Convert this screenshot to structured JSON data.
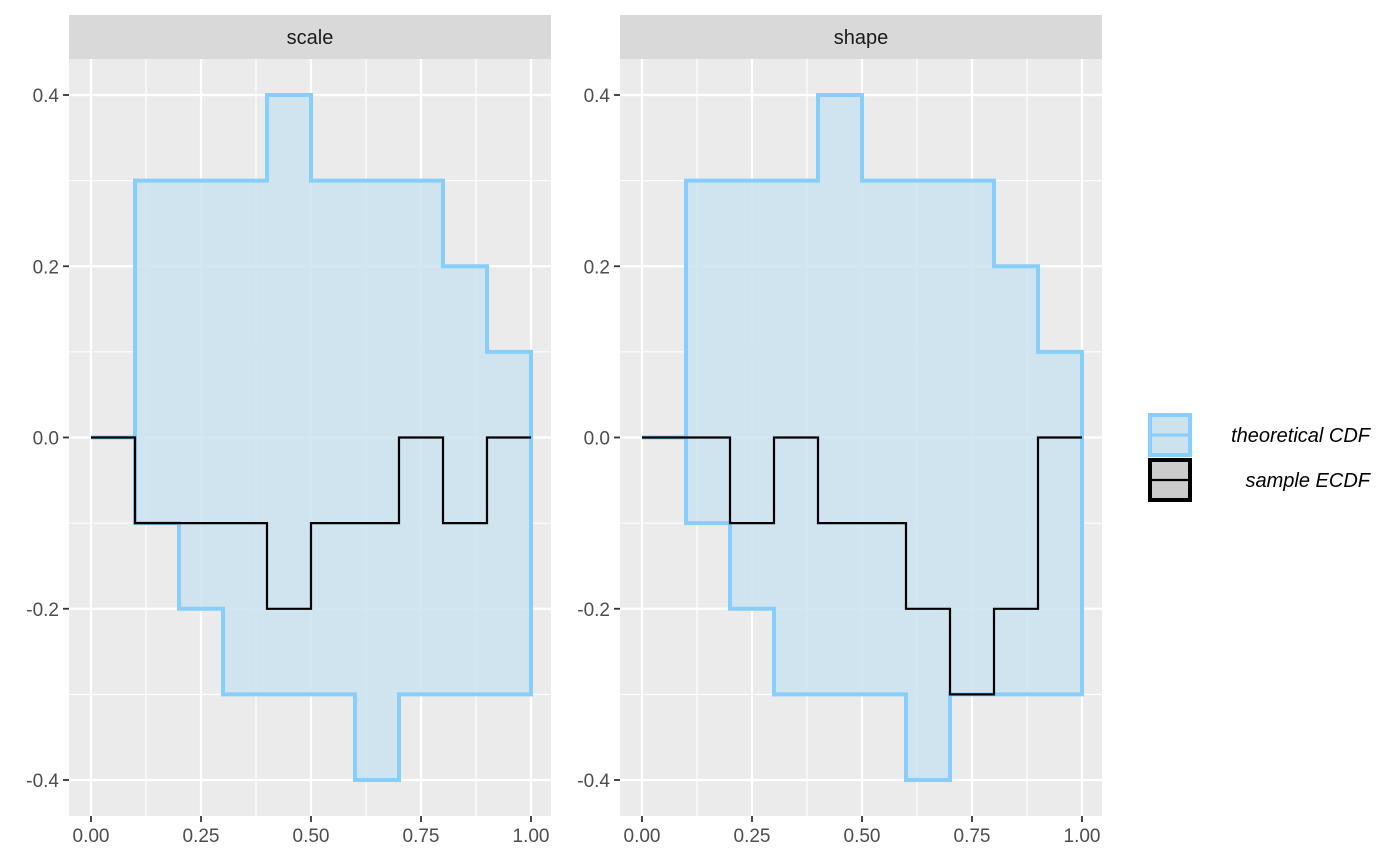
{
  "chart_data": {
    "type": "line",
    "subtype": "step",
    "xlim": [
      0,
      1
    ],
    "ylim": [
      -0.4,
      0.4
    ],
    "x_ticks": [
      0,
      0.25,
      0.5,
      0.75,
      1
    ],
    "x_tick_labels": [
      "0.00",
      "0.25",
      "0.50",
      "0.75",
      "1.00"
    ],
    "y_ticks": [
      -0.4,
      -0.2,
      0.0,
      0.2,
      0.4
    ],
    "y_tick_labels": [
      "-0.4",
      "-0.2",
      "0.0",
      "0.2",
      "0.4"
    ],
    "grid": true,
    "legend_position": "right",
    "colors": {
      "band_fill": "#cce3ee",
      "band_line": "#87cefa",
      "ecdf_line": "#000000",
      "panel_bg": "#ebebeb",
      "strip_bg": "#d9d9d9",
      "grid": "#ffffff"
    },
    "legend": [
      {
        "label": "theoretical CDF",
        "key": "band"
      },
      {
        "label": "sample ECDF",
        "key": "ecdf"
      }
    ],
    "panels": [
      {
        "name": "scale",
        "x": [
          0,
          0.1,
          0.2,
          0.3,
          0.4,
          0.5,
          0.6,
          0.7,
          0.8,
          0.9,
          1.0
        ],
        "upper": [
          0.0,
          0.3,
          0.3,
          0.3,
          0.4,
          0.3,
          0.3,
          0.3,
          0.2,
          0.1,
          0.1
        ],
        "lower": [
          0.0,
          -0.1,
          -0.2,
          -0.3,
          -0.3,
          -0.3,
          -0.4,
          -0.3,
          -0.3,
          -0.3,
          -0.3
        ],
        "ecdf": [
          0.0,
          -0.1,
          -0.1,
          -0.1,
          -0.2,
          -0.1,
          -0.1,
          0.0,
          -0.1,
          0.0,
          0.0
        ]
      },
      {
        "name": "shape",
        "x": [
          0,
          0.1,
          0.2,
          0.3,
          0.4,
          0.5,
          0.6,
          0.7,
          0.8,
          0.9,
          1.0
        ],
        "upper": [
          0.0,
          0.3,
          0.3,
          0.3,
          0.4,
          0.3,
          0.3,
          0.3,
          0.2,
          0.1,
          0.1
        ],
        "lower": [
          0.0,
          -0.1,
          -0.2,
          -0.3,
          -0.3,
          -0.3,
          -0.4,
          -0.3,
          -0.3,
          -0.3,
          -0.3
        ],
        "ecdf": [
          0.0,
          0.0,
          -0.1,
          0.0,
          -0.1,
          -0.1,
          -0.2,
          -0.3,
          -0.2,
          0.0,
          0.0
        ]
      }
    ]
  }
}
